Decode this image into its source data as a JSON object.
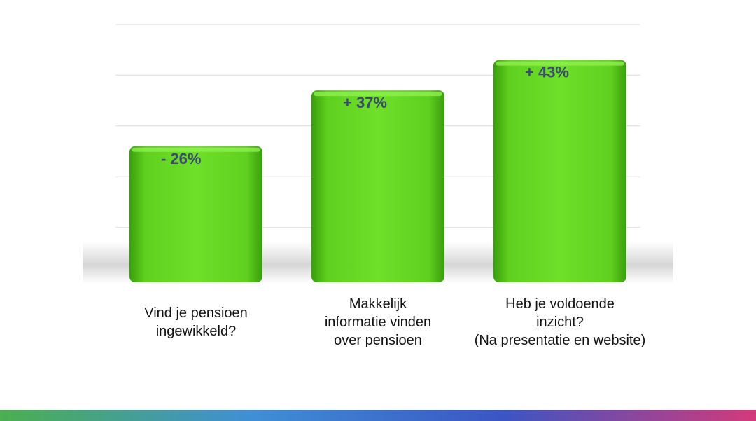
{
  "chart_data": {
    "type": "bar",
    "categories": [
      "Vind je pensioen\ningewikkeld?",
      "Makkelijk\ninformatie vinden\nover pensioen",
      "Heb je voldoende\ninzicht?\n(Na presentatie en website)"
    ],
    "values": [
      26,
      37,
      43
    ],
    "data_labels": [
      "- 26%",
      "+ 37%",
      "+ 43%"
    ],
    "ylim": [
      0,
      50
    ],
    "grid": true,
    "title": "",
    "xlabel": "",
    "ylabel": ""
  },
  "colors": {
    "bar": "#5fd01f",
    "bar_light": "#8ef04f",
    "bar_dark": "#3a9e0e",
    "data_label": "#3c4a6e",
    "gridline": "#dcdcdc",
    "floor": "#d0d0d0",
    "bottom_gradient": [
      "#4caf50",
      "#3f8fd6",
      "#3b55c4",
      "#d43a7a"
    ]
  }
}
